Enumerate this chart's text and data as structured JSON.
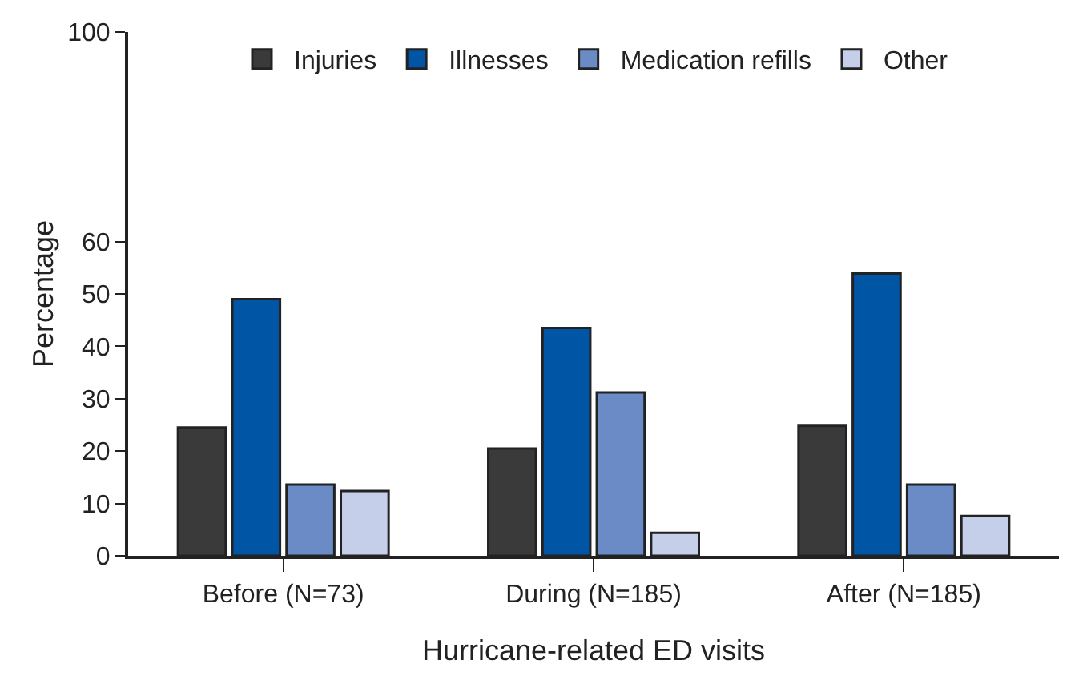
{
  "chart_data": {
    "type": "bar",
    "xlabel": "Hurricane-related ED visits",
    "ylabel": "Percentage",
    "categories": [
      "Before (N=73)",
      "During (N=185)",
      "After (N=185)"
    ],
    "series": [
      {
        "name": "Injuries",
        "color": "#3a3a3a",
        "values": [
          24.5,
          20.5,
          24.8
        ]
      },
      {
        "name": "Illnesses",
        "color": "#0055a5",
        "values": [
          49,
          43.5,
          53.9
        ]
      },
      {
        "name": "Medication refills",
        "color": "#6a8bc6",
        "values": [
          13.6,
          31.2,
          13.6
        ]
      },
      {
        "name": "Other",
        "color": "#c5cfe9",
        "values": [
          12.4,
          4.4,
          7.6
        ]
      }
    ],
    "ylim": [
      0,
      100
    ],
    "yticks": [
      0,
      10,
      20,
      30,
      40,
      50,
      60,
      100
    ],
    "grid": false,
    "legend": "top"
  }
}
